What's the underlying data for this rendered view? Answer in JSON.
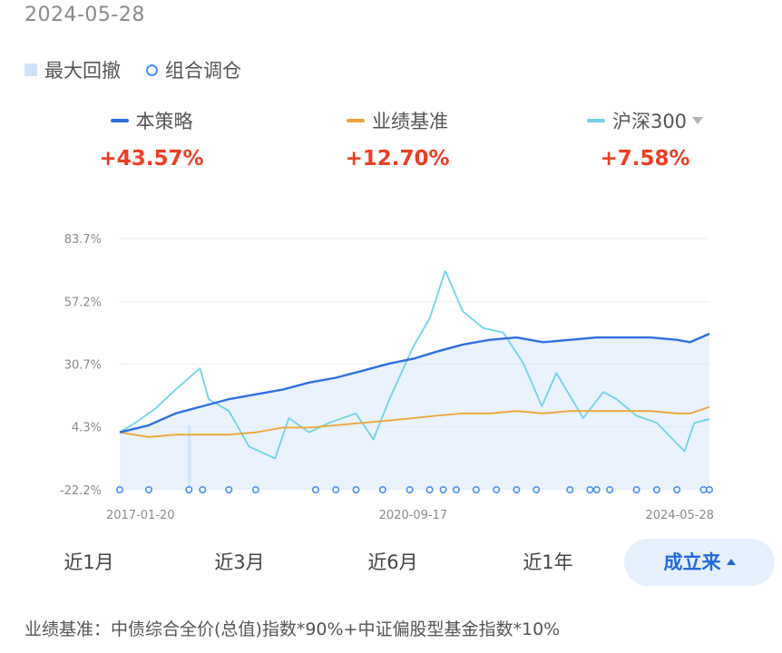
{
  "header": {
    "date": "2024-05-28"
  },
  "top_legend": {
    "drawdown_label": "最大回撤",
    "rebalance_label": "组合调仓"
  },
  "series_legend": [
    {
      "name": "本策略",
      "return": "+43.57%",
      "color": "#2f6fe4"
    },
    {
      "name": "业绩基准",
      "return": "+12.70%",
      "color": "#f0a23a"
    },
    {
      "name": "沪深300",
      "return": "+7.58%",
      "color": "#6fd3e8",
      "has_dropdown": true
    }
  ],
  "range_tabs": [
    {
      "label": "近1月",
      "active": false
    },
    {
      "label": "近3月",
      "active": false
    },
    {
      "label": "近6月",
      "active": false
    },
    {
      "label": "近1年",
      "active": false
    },
    {
      "label": "成立来",
      "active": true
    }
  ],
  "benchmark_note": "业绩基准：中债综合全价(总值)指数*90%+中证偏股型基金指数*10%",
  "chart_data": {
    "type": "line",
    "x_tick_labels": [
      "2017-01-20",
      "2020-09-17",
      "2024-05-28"
    ],
    "x_range": [
      "2017-01-20",
      "2024-05-28"
    ],
    "y_tick_labels": [
      "83.7%",
      "57.2%",
      "30.7%",
      "4.3%",
      "-22.2%"
    ],
    "ylim": [
      -22.2,
      83.7
    ],
    "grid": true,
    "drawdown_band": {
      "color": "#cfe3fb"
    },
    "series": [
      {
        "name": "本策略",
        "color": "#2f6fe4",
        "x": [
          "2017-01-20",
          "2017-06-01",
          "2017-10-01",
          "2018-02-01",
          "2018-06-01",
          "2018-10-01",
          "2019-02-01",
          "2019-06-01",
          "2019-10-01",
          "2020-02-01",
          "2020-06-01",
          "2020-09-17",
          "2021-01-01",
          "2021-05-01",
          "2021-09-01",
          "2022-01-01",
          "2022-05-01",
          "2022-09-01",
          "2023-01-01",
          "2023-05-01",
          "2023-09-01",
          "2024-01-01",
          "2024-03-01",
          "2024-05-28"
        ],
        "values": [
          2,
          5,
          10,
          13,
          16,
          18,
          20,
          23,
          25,
          28,
          31,
          33,
          36,
          39,
          41,
          42,
          40,
          41,
          42,
          42,
          42,
          41,
          40,
          43.57
        ]
      },
      {
        "name": "业绩基准",
        "color": "#f0a23a",
        "x": [
          "2017-01-20",
          "2017-06-01",
          "2017-10-01",
          "2018-02-01",
          "2018-06-01",
          "2018-10-01",
          "2019-02-01",
          "2019-06-01",
          "2019-10-01",
          "2020-02-01",
          "2020-06-01",
          "2020-09-17",
          "2021-01-01",
          "2021-05-01",
          "2021-09-01",
          "2022-01-01",
          "2022-05-01",
          "2022-09-01",
          "2023-01-01",
          "2023-05-01",
          "2023-09-01",
          "2024-01-01",
          "2024-03-01",
          "2024-05-28"
        ],
        "values": [
          2,
          0,
          1,
          1,
          1,
          2,
          4,
          4,
          5,
          6,
          7,
          8,
          9,
          10,
          10,
          11,
          10,
          11,
          11,
          11,
          11,
          10,
          10,
          12.7
        ]
      },
      {
        "name": "沪深300",
        "color": "#6fd3e8",
        "x": [
          "2017-01-20",
          "2017-04-01",
          "2017-07-01",
          "2017-10-01",
          "2018-01-20",
          "2018-03-01",
          "2018-06-01",
          "2018-09-01",
          "2018-12-28",
          "2019-03-01",
          "2019-06-01",
          "2019-09-01",
          "2019-12-31",
          "2020-03-20",
          "2020-06-01",
          "2020-09-17",
          "2020-12-01",
          "2021-02-10",
          "2021-05-01",
          "2021-08-01",
          "2021-11-01",
          "2022-02-01",
          "2022-04-26",
          "2022-07-01",
          "2022-10-31",
          "2023-01-31",
          "2023-04-01",
          "2023-07-01",
          "2023-10-01",
          "2024-02-05",
          "2024-03-20",
          "2024-05-28"
        ],
        "values": [
          2,
          6,
          12,
          20,
          29,
          16,
          11,
          -4,
          -9,
          8,
          2,
          6,
          10,
          -1,
          16,
          38,
          50,
          70,
          53,
          46,
          44,
          31,
          13,
          27,
          8,
          19,
          16,
          9,
          6,
          -6,
          6,
          7.58
        ]
      }
    ],
    "rebalance_dates": [
      "2017-01-20",
      "2017-06-01",
      "2017-12-01",
      "2018-02-01",
      "2018-06-01",
      "2018-10-01",
      "2019-07-01",
      "2019-10-01",
      "2020-01-01",
      "2020-05-01",
      "2020-09-01",
      "2020-12-01",
      "2021-02-01",
      "2021-04-01",
      "2021-07-01",
      "2021-10-01",
      "2022-01-01",
      "2022-04-01",
      "2022-09-01",
      "2022-12-01",
      "2023-01-01",
      "2023-03-01",
      "2023-07-01",
      "2023-10-01",
      "2024-01-01",
      "2024-05-01",
      "2024-05-28"
    ]
  }
}
